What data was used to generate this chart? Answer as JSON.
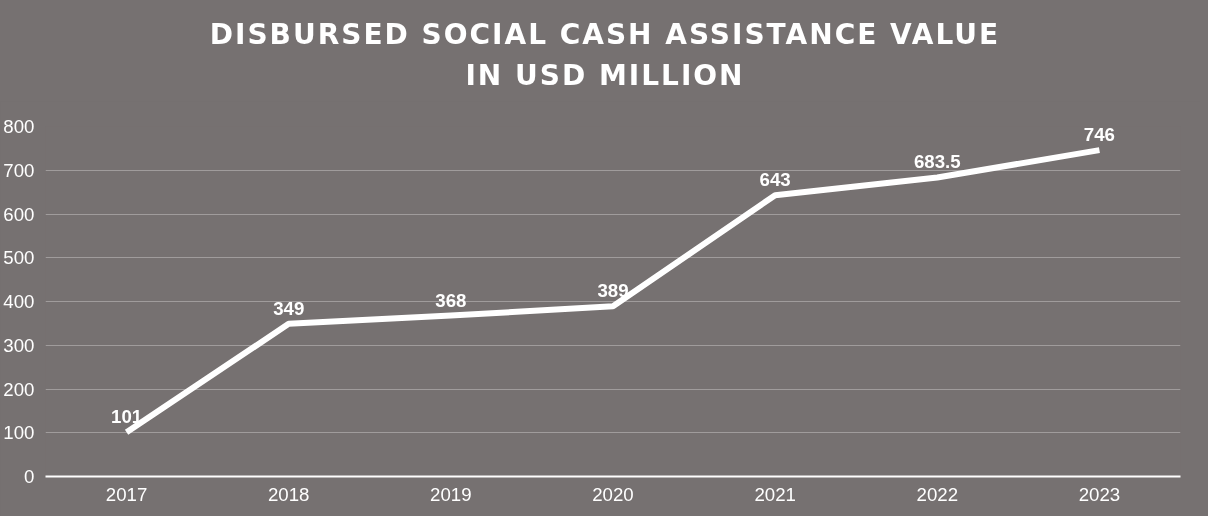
{
  "chart_data": {
    "type": "line",
    "title": "DISBURSED SOCIAL CASH ASSISTANCE VALUE\nIN USD MILLION",
    "categories": [
      "2017",
      "2018",
      "2019",
      "2020",
      "2021",
      "2022",
      "2023"
    ],
    "series": [
      {
        "color": "#ffffff",
        "values": [
          101,
          349,
          368,
          389,
          643,
          683.5,
          746
        ]
      }
    ],
    "ylim": [
      0,
      800
    ],
    "yticks": [
      0,
      100,
      200,
      300,
      400,
      500,
      600,
      700,
      800
    ],
    "grid": "y",
    "data_labels": true,
    "marker": "none",
    "line_style": "solid"
  }
}
